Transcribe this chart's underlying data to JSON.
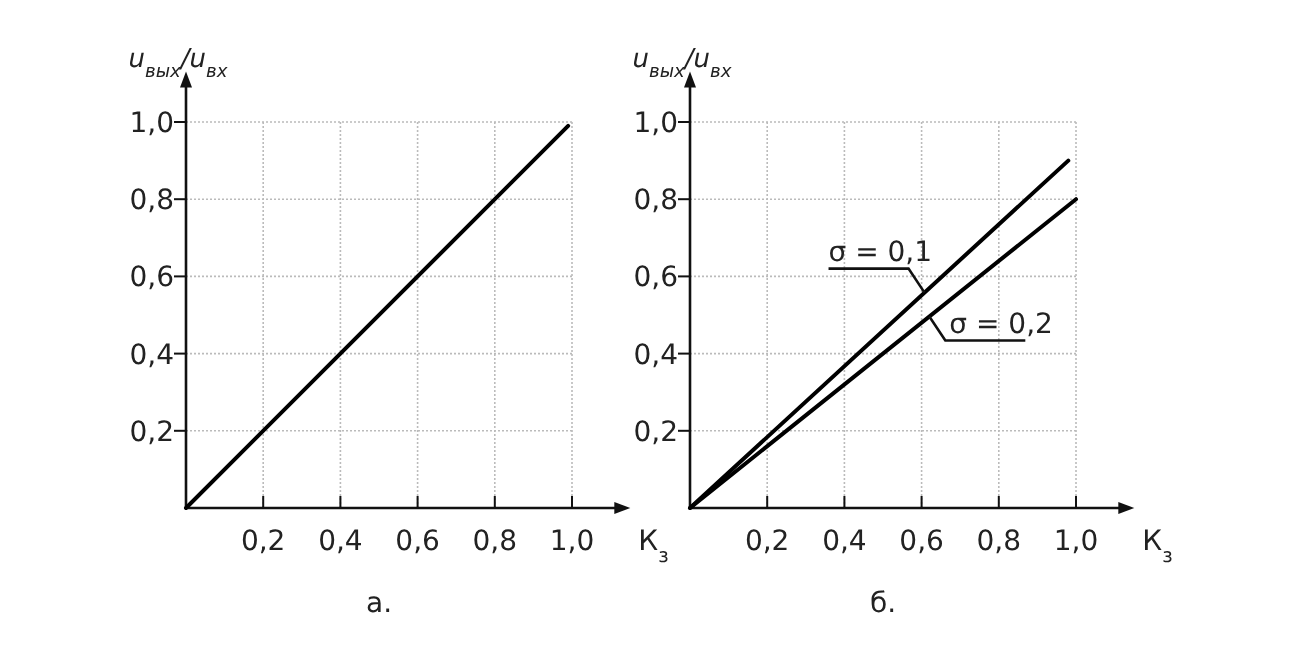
{
  "chart_data": [
    {
      "type": "line",
      "title": "а.",
      "xlabel": "К$_{з}$",
      "ylabel": "u$_{вых}$/u$_{вх}$",
      "xlim": [
        0,
        1.12
      ],
      "ylim": [
        0,
        1.1
      ],
      "xticks": [
        {
          "value": 0.2,
          "label": "0,2"
        },
        {
          "value": 0.4,
          "label": "0,4"
        },
        {
          "value": 0.6,
          "label": "0,6"
        },
        {
          "value": 0.8,
          "label": "0,8"
        },
        {
          "value": 1.0,
          "label": "1,0"
        }
      ],
      "yticks": [
        {
          "value": 0.2,
          "label": "0,2"
        },
        {
          "value": 0.4,
          "label": "0,4"
        },
        {
          "value": 0.6,
          "label": "0,6"
        },
        {
          "value": 0.8,
          "label": "0,8"
        },
        {
          "value": 1.0,
          "label": "1,0"
        }
      ],
      "grid": true,
      "series": [
        {
          "color": "#000000",
          "x": [
            0,
            0.99
          ],
          "values": [
            0,
            0.99
          ]
        }
      ]
    },
    {
      "type": "line",
      "title": "б.",
      "xlabel": "К$_{з}$",
      "ylabel": "u$_{вых}$/u$_{вх}$",
      "xlim": [
        0,
        1.12
      ],
      "ylim": [
        0,
        1.1
      ],
      "xticks": [
        {
          "value": 0.2,
          "label": "0,2"
        },
        {
          "value": 0.4,
          "label": "0,4"
        },
        {
          "value": 0.6,
          "label": "0,6"
        },
        {
          "value": 0.8,
          "label": "0,8"
        },
        {
          "value": 1.0,
          "label": "1,0"
        }
      ],
      "yticks": [
        {
          "value": 0.2,
          "label": "0,2"
        },
        {
          "value": 0.4,
          "label": "0,4"
        },
        {
          "value": 0.6,
          "label": "0,6"
        },
        {
          "value": 0.8,
          "label": "0,8"
        },
        {
          "value": 1.0,
          "label": "1,0"
        }
      ],
      "grid": true,
      "series": [
        {
          "name": "σ = 0,1",
          "color": "#000000",
          "x": [
            0,
            0.98
          ],
          "values": [
            0,
            0.9
          ]
        },
        {
          "name": "σ = 0,2",
          "color": "#000000",
          "x": [
            0,
            1.0
          ],
          "values": [
            0,
            0.8
          ]
        }
      ]
    }
  ]
}
